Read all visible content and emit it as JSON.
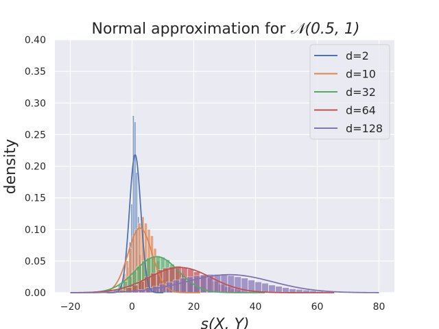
{
  "chart_data": {
    "type": "histogram+line",
    "title_prefix": "Normal approximation for ",
    "title_math": "𝒩(0.5, 1)",
    "xlabel": "s(X, Y)",
    "ylabel": "density",
    "xlim": [
      -25,
      85
    ],
    "ylim": [
      0,
      0.4
    ],
    "xticks": [
      -20,
      0,
      20,
      40,
      60,
      80
    ],
    "yticks": [
      0.0,
      0.05,
      0.1,
      0.15,
      0.2,
      0.25,
      0.3,
      0.35,
      0.4
    ],
    "grid": true,
    "legend_position": "top-right",
    "series": [
      {
        "name": "d=2",
        "color": "#4c72b0",
        "mean": 1.0,
        "std": 1.83,
        "bin_width": 0.6,
        "bins": [
          -2,
          3.5
        ],
        "hist": [
          0.01,
          0.04,
          0.08,
          0.14,
          0.28,
          0.27,
          0.19,
          0.12,
          0.06,
          0.02
        ]
      },
      {
        "name": "d=10",
        "color": "#dd8452",
        "mean": 2.6,
        "std": 3.9,
        "bin_width": 1.0,
        "bins": [
          -5,
          13
        ],
        "hist": [
          0.005,
          0.01,
          0.03,
          0.05,
          0.07,
          0.09,
          0.1,
          0.11,
          0.12,
          0.11,
          0.1,
          0.09,
          0.07,
          0.05,
          0.03,
          0.02,
          0.01,
          0.005
        ]
      },
      {
        "name": "d=32",
        "color": "#55a868",
        "mean": 8.0,
        "std": 7.0,
        "bin_width": 1.5,
        "bins": [
          -6,
          26
        ],
        "hist": [
          0.005,
          0.012,
          0.018,
          0.026,
          0.034,
          0.042,
          0.05,
          0.055,
          0.058,
          0.058,
          0.056,
          0.052,
          0.045,
          0.038,
          0.03,
          0.022,
          0.016,
          0.01,
          0.007,
          0.004,
          0.003
        ]
      },
      {
        "name": "d=64",
        "color": "#c44e52",
        "mean": 15.5,
        "std": 10.0,
        "bin_width": 2.0,
        "bins": [
          -4,
          36
        ],
        "hist": [
          0.004,
          0.008,
          0.012,
          0.018,
          0.025,
          0.031,
          0.036,
          0.039,
          0.041,
          0.042,
          0.04,
          0.037,
          0.033,
          0.028,
          0.023,
          0.018,
          0.013,
          0.009,
          0.006,
          0.004
        ]
      },
      {
        "name": "d=128",
        "color": "#8172b2",
        "mean": 31.5,
        "std": 14.0,
        "bin_width": 2.2,
        "bins": [
          0,
          62
        ],
        "hist": [
          0.003,
          0.005,
          0.008,
          0.01,
          0.014,
          0.017,
          0.02,
          0.023,
          0.025,
          0.027,
          0.028,
          0.029,
          0.029,
          0.028,
          0.027,
          0.025,
          0.023,
          0.02,
          0.017,
          0.015,
          0.012,
          0.01,
          0.008,
          0.006,
          0.005,
          0.004,
          0.003,
          0.002
        ]
      }
    ]
  }
}
